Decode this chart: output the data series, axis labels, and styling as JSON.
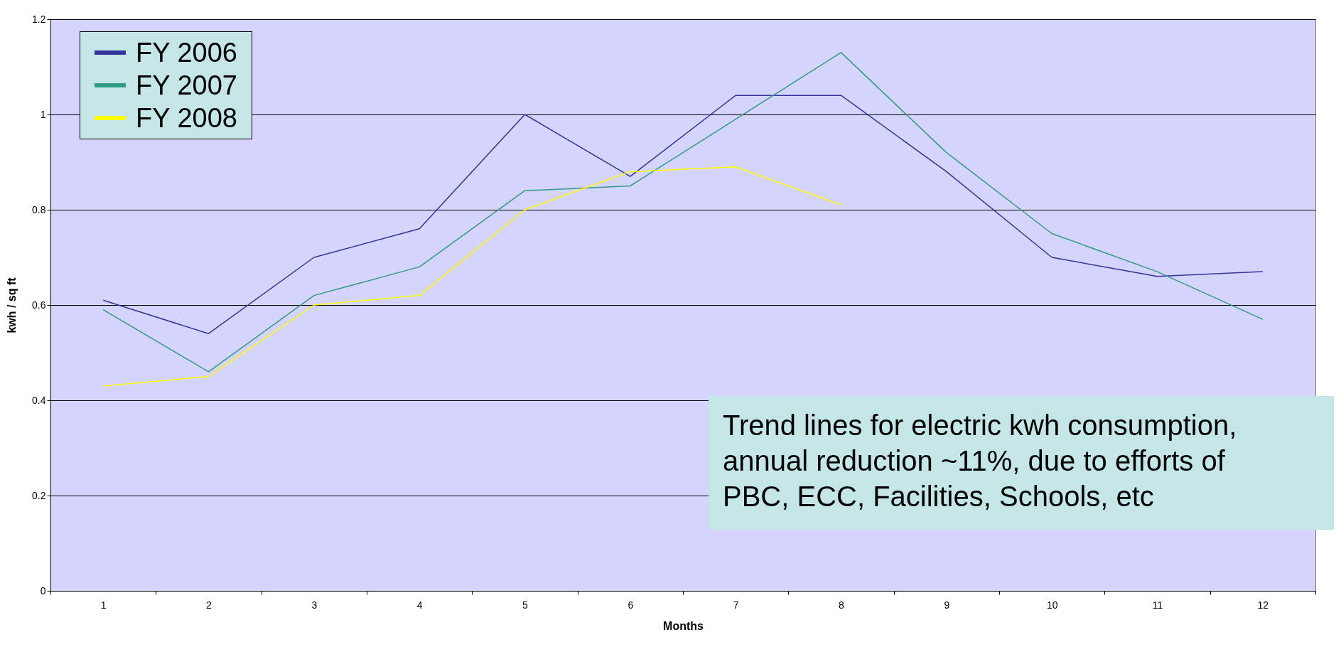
{
  "chart_data": {
    "type": "line",
    "xlabel": "Months",
    "ylabel": "kwh / sq ft",
    "categories": [
      "1",
      "2",
      "3",
      "4",
      "5",
      "6",
      "7",
      "8",
      "9",
      "10",
      "11",
      "12"
    ],
    "series": [
      {
        "name": "FY 2006",
        "color": "#333399",
        "values": [
          0.61,
          0.54,
          0.7,
          0.76,
          1.0,
          0.87,
          1.04,
          1.04,
          0.88,
          0.7,
          0.66,
          0.67
        ]
      },
      {
        "name": "FY 2007",
        "color": "#339980",
        "values": [
          0.59,
          0.46,
          0.62,
          0.68,
          0.84,
          0.85,
          0.99,
          1.13,
          0.92,
          0.75,
          0.67,
          0.57
        ]
      },
      {
        "name": "FY 2008",
        "color": "#ffff00",
        "values": [
          0.43,
          0.45,
          0.6,
          0.62,
          0.8,
          0.88,
          0.89,
          0.81,
          null,
          null,
          null,
          null
        ]
      }
    ],
    "ylim": [
      0,
      1.2
    ],
    "yticks": [
      0,
      0.2,
      0.4,
      0.6,
      0.8,
      1,
      1.2
    ],
    "grid": "y",
    "legend": "top left",
    "marker": "none",
    "line_style": "solid",
    "annotations": [
      "Trend lines for electric kwh consumption, annual reduction ~11%, due to efforts of PBC, ECC, Facilities, Schools, etc"
    ]
  }
}
